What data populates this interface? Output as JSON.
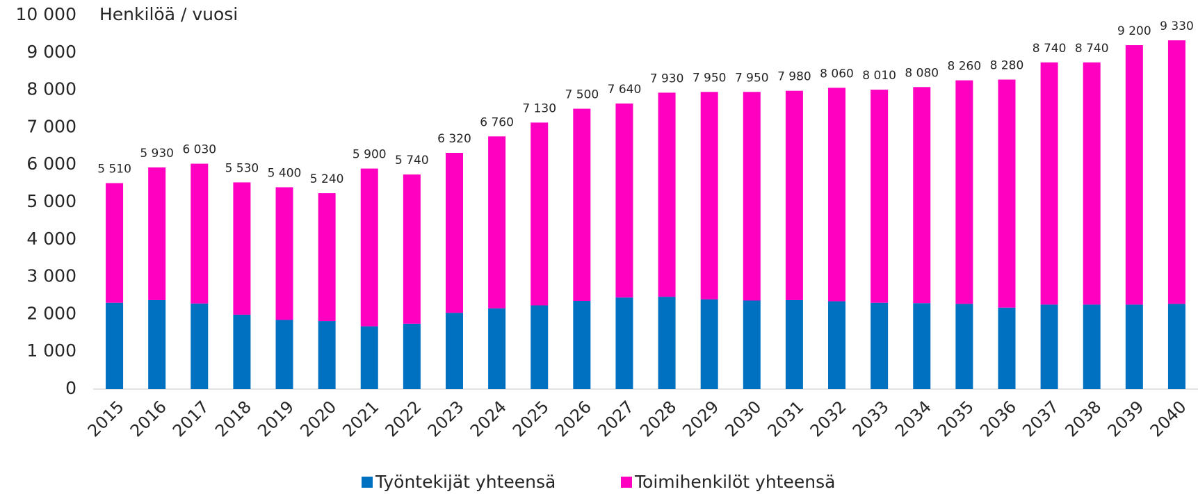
{
  "chart_data": {
    "type": "stacked_bar",
    "title": "Henkilöä / vuosi",
    "categories": [
      "2015",
      "2016",
      "2017",
      "2018",
      "2019",
      "2020",
      "2021",
      "2022",
      "2023",
      "2024",
      "2025",
      "2026",
      "2027",
      "2028",
      "2029",
      "2030",
      "2031",
      "2032",
      "2033",
      "2034",
      "2035",
      "2036",
      "2037",
      "2038",
      "2039",
      "2040"
    ],
    "series": [
      {
        "name": "Työntekijät yhteensä",
        "color": "#0070c0",
        "values": [
          2310,
          2380,
          2290,
          1990,
          1850,
          1820,
          1680,
          1750,
          2040,
          2160,
          2240,
          2360,
          2450,
          2470,
          2400,
          2370,
          2380,
          2350,
          2310,
          2300,
          2280,
          2180,
          2260,
          2260,
          2260,
          2280
        ]
      },
      {
        "name": "Toimihenkilöt yhteensä",
        "color": "#ff00c0",
        "values": [
          3200,
          3550,
          3740,
          3540,
          3550,
          3420,
          4220,
          3990,
          4280,
          4600,
          4890,
          5140,
          5190,
          5460,
          5550,
          5580,
          5600,
          5710,
          5700,
          5780,
          5980,
          6100,
          6480,
          6480,
          6940,
          7050
        ]
      }
    ],
    "totals": [
      5510,
      5930,
      6030,
      5530,
      5400,
      5240,
      5900,
      5740,
      6320,
      6760,
      7130,
      7500,
      7640,
      7930,
      7950,
      7950,
      7980,
      8060,
      8010,
      8080,
      8260,
      8280,
      8740,
      8740,
      9200,
      9330
    ],
    "total_labels": [
      "5 510",
      "5 930",
      "6 030",
      "5 530",
      "5 400",
      "5 240",
      "5 900",
      "5 740",
      "6 320",
      "6 760",
      "7 130",
      "7 500",
      "7 640",
      "7 930",
      "7 950",
      "7 950",
      "7 980",
      "8 060",
      "8 010",
      "8 080",
      "8 260",
      "8 280",
      "8 740",
      "8 740",
      "9 200",
      "9 330"
    ],
    "ylim": [
      0,
      10000
    ],
    "yticks": [
      0,
      {
        "value": 1000,
        "label": "1 000"
      },
      {
        "value": 2000,
        "label": "2 000"
      },
      {
        "value": 3000,
        "label": "3 000"
      },
      {
        "value": 4000,
        "label": "4 000"
      },
      {
        "value": 5000,
        "label": "5 000"
      },
      {
        "value": 6000,
        "label": "6 000"
      },
      {
        "value": 7000,
        "label": "7 000"
      },
      {
        "value": 8000,
        "label": "8 000"
      },
      {
        "value": 9000,
        "label": "9 000"
      },
      {
        "value": 10000,
        "label": "10 000"
      }
    ],
    "grid": false,
    "legend": "bottom"
  }
}
